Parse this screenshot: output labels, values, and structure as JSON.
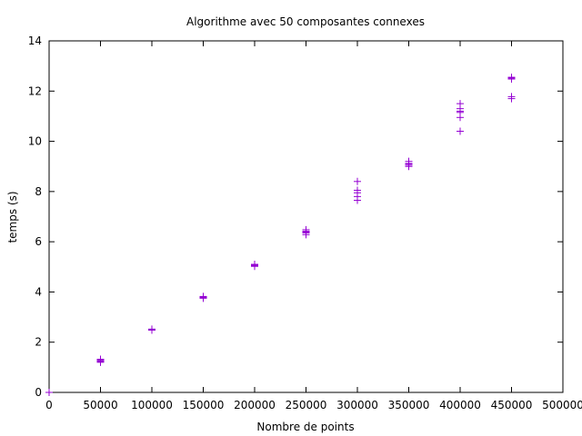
{
  "chart_data": {
    "type": "scatter",
    "title": "Algorithme avec 50 composantes connexes",
    "xlabel": "Nombre de points",
    "ylabel": "temps (s)",
    "xlim": [
      0,
      500000
    ],
    "ylim": [
      0,
      14
    ],
    "xticks": [
      "0",
      "50000",
      "100000",
      "150000",
      "200000",
      "250000",
      "300000",
      "350000",
      "400000",
      "450000",
      "500000"
    ],
    "yticks": [
      "0",
      "2",
      "4",
      "6",
      "8",
      "10",
      "12",
      "14"
    ],
    "grid": false,
    "marker": "plus",
    "color": "#9400d3",
    "series": [
      {
        "x": [
          0,
          0,
          0,
          0,
          0,
          50000,
          50000,
          50000,
          50000,
          50000,
          100000,
          100000,
          100000,
          100000,
          100000,
          150000,
          150000,
          150000,
          150000,
          150000,
          200000,
          200000,
          200000,
          200000,
          200000,
          250000,
          250000,
          250000,
          250000,
          250000,
          300000,
          300000,
          300000,
          300000,
          300000,
          350000,
          350000,
          350000,
          350000,
          350000,
          400000,
          400000,
          400000,
          400000,
          400000,
          400000,
          450000,
          450000,
          450000,
          450000,
          450000
        ],
        "y": [
          0.0,
          0.0,
          0.0,
          0.0,
          0.0,
          1.2,
          1.22,
          1.25,
          1.28,
          1.32,
          2.48,
          2.5,
          2.52,
          2.5,
          2.49,
          3.75,
          3.78,
          3.8,
          3.82,
          3.77,
          5.02,
          5.05,
          5.08,
          5.1,
          5.04,
          6.28,
          6.35,
          6.42,
          6.48,
          6.38,
          7.65,
          7.8,
          7.95,
          8.05,
          8.4,
          9.0,
          9.05,
          9.1,
          9.2,
          9.12,
          10.4,
          10.95,
          11.15,
          11.3,
          11.5,
          11.2,
          11.7,
          11.78,
          12.48,
          12.52,
          12.55
        ]
      }
    ]
  }
}
